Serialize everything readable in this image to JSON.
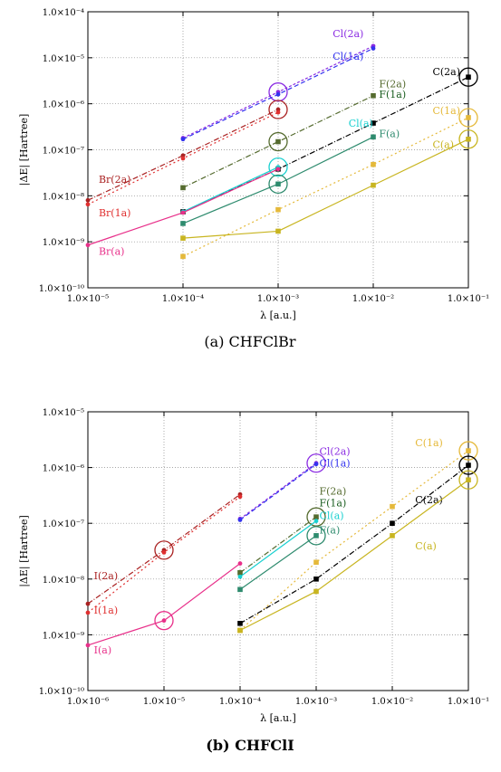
{
  "figure": {
    "captions": [
      "(a) CHFClBr",
      "(b) CHFClI"
    ]
  },
  "chart_data": [
    {
      "type": "line",
      "caption": "(a) CHFClBr",
      "xlabel": "λ [a.u.]",
      "ylabel": "|ΔE| [Hartree]",
      "xscale": "log",
      "yscale": "log",
      "xlim": [
        1e-05,
        0.1
      ],
      "ylim": [
        1e-10,
        0.0001
      ],
      "grid": true,
      "xticks": [
        "1.0×10⁻⁵",
        "1.0×10⁻⁴",
        "1.0×10⁻³",
        "1.0×10⁻²",
        "1.0×10⁻¹"
      ],
      "yticks": [
        "1.0×10⁻¹⁰",
        "1.0×10⁻⁹",
        "1.0×10⁻⁸",
        "1.0×10⁻⁷",
        "1.0×10⁻⁶",
        "1.0×10⁻⁵",
        "1.0×10⁻⁴"
      ],
      "series": [
        {
          "name": "Cl(2a)",
          "color": "#8a2be2",
          "dash": "3,2",
          "marker": "circle",
          "label_at": [
            0.00375,
            2.8e-05
          ],
          "x": [
            0.0001,
            0.001,
            0.01
          ],
          "y": [
            1.8e-07,
            1.8e-06,
            1.8e-05
          ],
          "circled": [
            0.001
          ]
        },
        {
          "name": "Cl(1a)",
          "color": "#3333ee",
          "dash": "5,3",
          "marker": "circle",
          "label_at": [
            0.00375,
            9e-06
          ],
          "x": [
            0.0001,
            0.001,
            0.01
          ],
          "y": [
            1.7e-07,
            1.6e-06,
            1.6e-05
          ],
          "circled": []
        },
        {
          "name": "C(2a)",
          "color": "#000000",
          "dash": "6,2,1,2",
          "marker": "square",
          "label_at": [
            0.042,
            4.2e-06
          ],
          "x": [
            0.0001,
            0.001,
            0.01,
            0.1
          ],
          "y": [
            4.5e-09,
            3.8e-08,
            3.8e-07,
            3.8e-06
          ],
          "circled": [
            0.1
          ]
        },
        {
          "name": "F(2a)",
          "color": "#556b2f",
          "dash": "6,2,1,2",
          "marker": "square",
          "label_at": [
            0.0115,
            2.3e-06
          ],
          "x": [
            0.0001,
            0.001,
            0.01
          ],
          "y": [
            1.5e-08,
            1.5e-07,
            1.5e-06
          ],
          "circled": [
            0.001
          ]
        },
        {
          "name": "F(1a)",
          "color": "#1b5e20",
          "dash": "",
          "marker": "square",
          "label_at": [
            0.0115,
            1.35e-06
          ],
          "x": [],
          "y": [],
          "circled": []
        },
        {
          "name": "C(1a)",
          "color": "#e5b93a",
          "dash": "2,3",
          "marker": "square",
          "label_at": [
            0.042,
            6e-07
          ],
          "x": [
            0.0001,
            0.001,
            0.01,
            0.1
          ],
          "y": [
            4.8e-10,
            5e-09,
            4.8e-08,
            5e-07
          ],
          "circled": [
            0.1
          ]
        },
        {
          "name": "Cl(a)",
          "color": "#18d0d0",
          "dash": "",
          "marker": "circle",
          "label_at": [
            0.0055,
            3.2e-07
          ],
          "x": [
            0.0001,
            0.001
          ],
          "y": [
            4.5e-09,
            4.2e-08
          ],
          "circled": [
            0.001
          ]
        },
        {
          "name": "F(a)",
          "color": "#2e8b6e",
          "dash": "",
          "marker": "square",
          "label_at": [
            0.0115,
            1.9e-07
          ],
          "x": [
            0.0001,
            0.001,
            0.01
          ],
          "y": [
            2.5e-09,
            1.8e-08,
            1.9e-07
          ],
          "circled": [
            0.001
          ]
        },
        {
          "name": "C(a)",
          "color": "#c8b520",
          "dash": "",
          "marker": "square",
          "label_at": [
            0.042,
            1.1e-07
          ],
          "x": [
            0.0001,
            0.001,
            0.01,
            0.1
          ],
          "y": [
            1.2e-09,
            1.7e-09,
            1.7e-08,
            1.7e-07
          ],
          "circled": [
            0.1
          ]
        },
        {
          "name": "Br(2a)",
          "color": "#aa2222",
          "dash": "6,2,1,2",
          "marker": "circle",
          "label_at": [
            1.3e-05,
            1.9e-08
          ],
          "x": [
            1e-05,
            0.0001,
            0.001
          ],
          "y": [
            8e-09,
            7.5e-08,
            7.5e-07
          ],
          "circled": [
            0.001
          ]
        },
        {
          "name": "Br(1a)",
          "color": "#e03030",
          "dash": "2,3",
          "marker": "circle",
          "label_at": [
            1.3e-05,
            3.6e-09
          ],
          "x": [
            1e-05,
            0.0001,
            0.001
          ],
          "y": [
            6.5e-09,
            6.5e-08,
            6.5e-07
          ],
          "circled": []
        },
        {
          "name": "Br(a)",
          "color": "#e8308a",
          "dash": "",
          "marker": "circle",
          "label_at": [
            1.3e-05,
            5.2e-10
          ],
          "x": [
            1e-05,
            0.0001,
            0.001
          ],
          "y": [
            8.5e-10,
            4.3e-09,
            3.8e-08
          ],
          "circled": []
        }
      ]
    },
    {
      "type": "line",
      "caption": "(b) CHFClI",
      "xlabel": "λ [a.u.]",
      "ylabel": "|ΔE| [Hartree]",
      "xscale": "log",
      "yscale": "log",
      "xlim": [
        1e-06,
        0.1
      ],
      "ylim": [
        1e-10,
        1e-05
      ],
      "grid": true,
      "xticks": [
        "1.0×10⁻⁶",
        "1.0×10⁻⁵",
        "1.0×10⁻⁴",
        "1.0×10⁻³",
        "1.0×10⁻²",
        "1.0×10⁻¹"
      ],
      "yticks": [
        "1.0×10⁻¹⁰",
        "1.0×10⁻⁹",
        "1.0×10⁻⁸",
        "1.0×10⁻⁷",
        "1.0×10⁻⁶",
        "1.0×10⁻⁵"
      ],
      "series": [
        {
          "name": "Cl(2a)",
          "color": "#8a2be2",
          "dash": "3,2",
          "marker": "circle",
          "label_at": [
            0.0011,
            1.7e-06
          ],
          "x": [
            0.0001,
            0.001
          ],
          "y": [
            1.2e-07,
            1.2e-06
          ],
          "circled": [
            0.001
          ]
        },
        {
          "name": "Cl(1a)",
          "color": "#3333ee",
          "dash": "5,3",
          "marker": "circle",
          "label_at": [
            0.0011,
            1.05e-06
          ],
          "x": [
            0.0001,
            0.001
          ],
          "y": [
            1.15e-07,
            1.15e-06
          ],
          "circled": []
        },
        {
          "name": "C(1a)",
          "color": "#e5b93a",
          "dash": "2,3",
          "marker": "square",
          "label_at": [
            0.02,
            2.4e-06
          ],
          "x": [
            0.0001,
            0.001,
            0.01,
            0.1
          ],
          "y": [
            1.2e-09,
            2e-08,
            2e-07,
            2e-06
          ],
          "circled": [
            0.1
          ]
        },
        {
          "name": "C(2a)",
          "color": "#000000",
          "dash": "6,2,1,2",
          "marker": "square",
          "label_at": [
            0.02,
            2.3e-07
          ],
          "x": [
            0.0001,
            0.001,
            0.01,
            0.1
          ],
          "y": [
            1.6e-09,
            1e-08,
            1e-07,
            1.1e-06
          ],
          "circled": [
            0.1
          ]
        },
        {
          "name": "F(2a)",
          "color": "#556b2f",
          "dash": "6,2,1,2",
          "marker": "square",
          "label_at": [
            0.0011,
            3.3e-07
          ],
          "x": [
            0.0001,
            0.001
          ],
          "y": [
            1.3e-08,
            1.3e-07
          ],
          "circled": [
            0.001
          ]
        },
        {
          "name": "F(1a)",
          "color": "#1b5e20",
          "dash": "",
          "marker": "square",
          "label_at": [
            0.0011,
            2e-07
          ],
          "x": [],
          "y": [],
          "circled": []
        },
        {
          "name": "Cl(a)",
          "color": "#18d0d0",
          "dash": "",
          "marker": "circle",
          "label_at": [
            0.0011,
            1.2e-07
          ],
          "x": [
            0.0001,
            0.001
          ],
          "y": [
            1.1e-08,
            1.1e-07
          ],
          "circled": []
        },
        {
          "name": "F(a)",
          "color": "#2e8b6e",
          "dash": "",
          "marker": "square",
          "label_at": [
            0.0011,
            6.5e-08
          ],
          "x": [
            0.0001,
            0.001
          ],
          "y": [
            6.5e-09,
            6e-08
          ],
          "circled": [
            0.001
          ]
        },
        {
          "name": "C(a)",
          "color": "#c8b520",
          "dash": "",
          "marker": "square",
          "label_at": [
            0.02,
            3.4e-08
          ],
          "x": [
            0.0001,
            0.001,
            0.01,
            0.1
          ],
          "y": [
            1.2e-09,
            6e-09,
            6e-08,
            6e-07
          ],
          "circled": [
            0.1
          ]
        },
        {
          "name": "I(2a)",
          "color": "#aa2222",
          "dash": "6,2,1,2",
          "marker": "circle",
          "label_at": [
            1.2e-06,
            1e-08
          ],
          "x": [
            1e-06,
            1e-05,
            0.0001
          ],
          "y": [
            3.6e-09,
            3.3e-08,
            3.3e-07
          ],
          "circled": [
            1e-05
          ]
        },
        {
          "name": "I(1a)",
          "color": "#e03030",
          "dash": "2,3",
          "marker": "circle",
          "label_at": [
            1.2e-06,
            2.4e-09
          ],
          "x": [
            1e-06,
            1e-05,
            0.0001
          ],
          "y": [
            2.5e-09,
            3e-08,
            3e-07
          ],
          "circled": []
        },
        {
          "name": "I(a)",
          "color": "#e8308a",
          "dash": "",
          "marker": "circle",
          "label_at": [
            1.2e-06,
            4.6e-10
          ],
          "x": [
            1e-06,
            1e-05,
            0.0001
          ],
          "y": [
            6.5e-10,
            1.8e-09,
            1.9e-08
          ],
          "circled": [
            1e-05
          ]
        }
      ]
    }
  ]
}
